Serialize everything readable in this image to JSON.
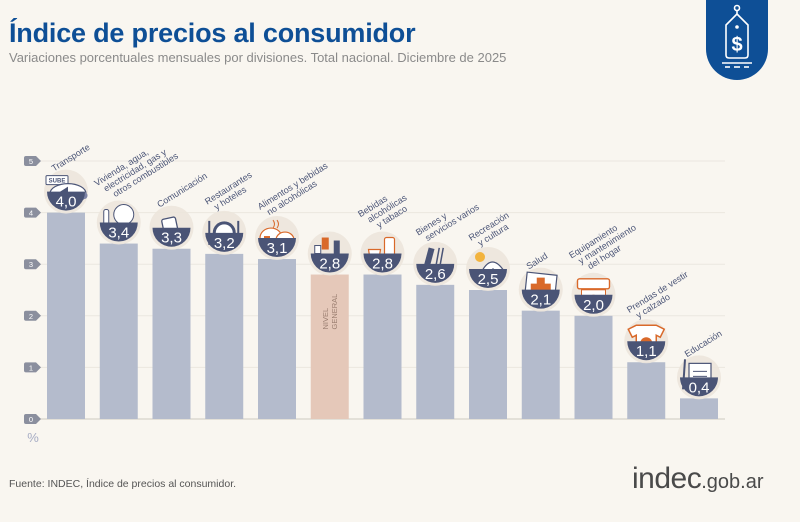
{
  "header": {
    "title": "Índice de precios al consumidor",
    "subtitle": "Variaciones porcentuales mensuales por divisiones. Total nacional. Diciembre de 2025",
    "badge_icon": "price-tag-dollar-icon"
  },
  "footer": {
    "source": "Fuente: INDEC, Índice de precios al consumidor.",
    "logo_main": "indec",
    "logo_suffix": ".gob.ar"
  },
  "colors": {
    "brand": "#0e4f96",
    "bar": "#b4bbcc",
    "bar_highlight": "#e5c8b9",
    "badge": "#4a5476",
    "icon_accent": "#d9692a"
  },
  "chart_data": {
    "type": "bar",
    "title": "Índice de precios al consumidor",
    "subtitle": "Variaciones porcentuales mensuales por divisiones. Total nacional. Diciembre de 2025",
    "xlabel": "",
    "ylabel": "%",
    "ylim": [
      0,
      5
    ],
    "yticks": [
      "0",
      "1",
      "2",
      "3",
      "4",
      "5"
    ],
    "grid": true,
    "categories": [
      {
        "lines": [
          "Transporte"
        ],
        "icon": "car-icon"
      },
      {
        "lines": [
          "Vivienda, agua,",
          "electricidad, gas y",
          "otros combustibles"
        ],
        "icon": "lightbulb-icon"
      },
      {
        "lines": [
          "Comunicación"
        ],
        "icon": "smartphone-icon"
      },
      {
        "lines": [
          "Restaurantes",
          "y hoteles"
        ],
        "icon": "plate-cutlery-icon"
      },
      {
        "lines": [
          "Alimentos y bebidas",
          "no alcohólicas"
        ],
        "icon": "food-icon"
      },
      {
        "lines": [],
        "icon": "shopping-basket-icon",
        "bar_label": [
          "NIVEL",
          "GENERAL"
        ],
        "highlight": true
      },
      {
        "lines": [
          "Bebidas",
          "alcohólicas",
          "y tabaco"
        ],
        "icon": "bottle-glass-icon"
      },
      {
        "lines": [
          "Bienes y",
          "servicios varios"
        ],
        "icon": "comb-scissors-icon"
      },
      {
        "lines": [
          "Recreación",
          "y cultura"
        ],
        "icon": "umbrella-sun-icon"
      },
      {
        "lines": [
          "Salud"
        ],
        "icon": "medical-cross-icon"
      },
      {
        "lines": [
          "Equipamiento",
          "y mantenimiento",
          "del hogar"
        ],
        "icon": "appliance-icon"
      },
      {
        "lines": [
          "Prendas de vestir",
          "y calzado"
        ],
        "icon": "shirt-shoe-icon"
      },
      {
        "lines": [
          "Educación"
        ],
        "icon": "notebook-pencil-icon"
      }
    ],
    "values": [
      4.0,
      3.4,
      3.3,
      3.2,
      3.1,
      2.8,
      2.8,
      2.6,
      2.5,
      2.1,
      2.0,
      1.1,
      0.4
    ],
    "value_labels": [
      "4,0",
      "3,4",
      "3,3",
      "3,2",
      "3,1",
      "2,8",
      "2,8",
      "2,6",
      "2,5",
      "2,1",
      "2,0",
      "1,1",
      "0,4"
    ]
  }
}
